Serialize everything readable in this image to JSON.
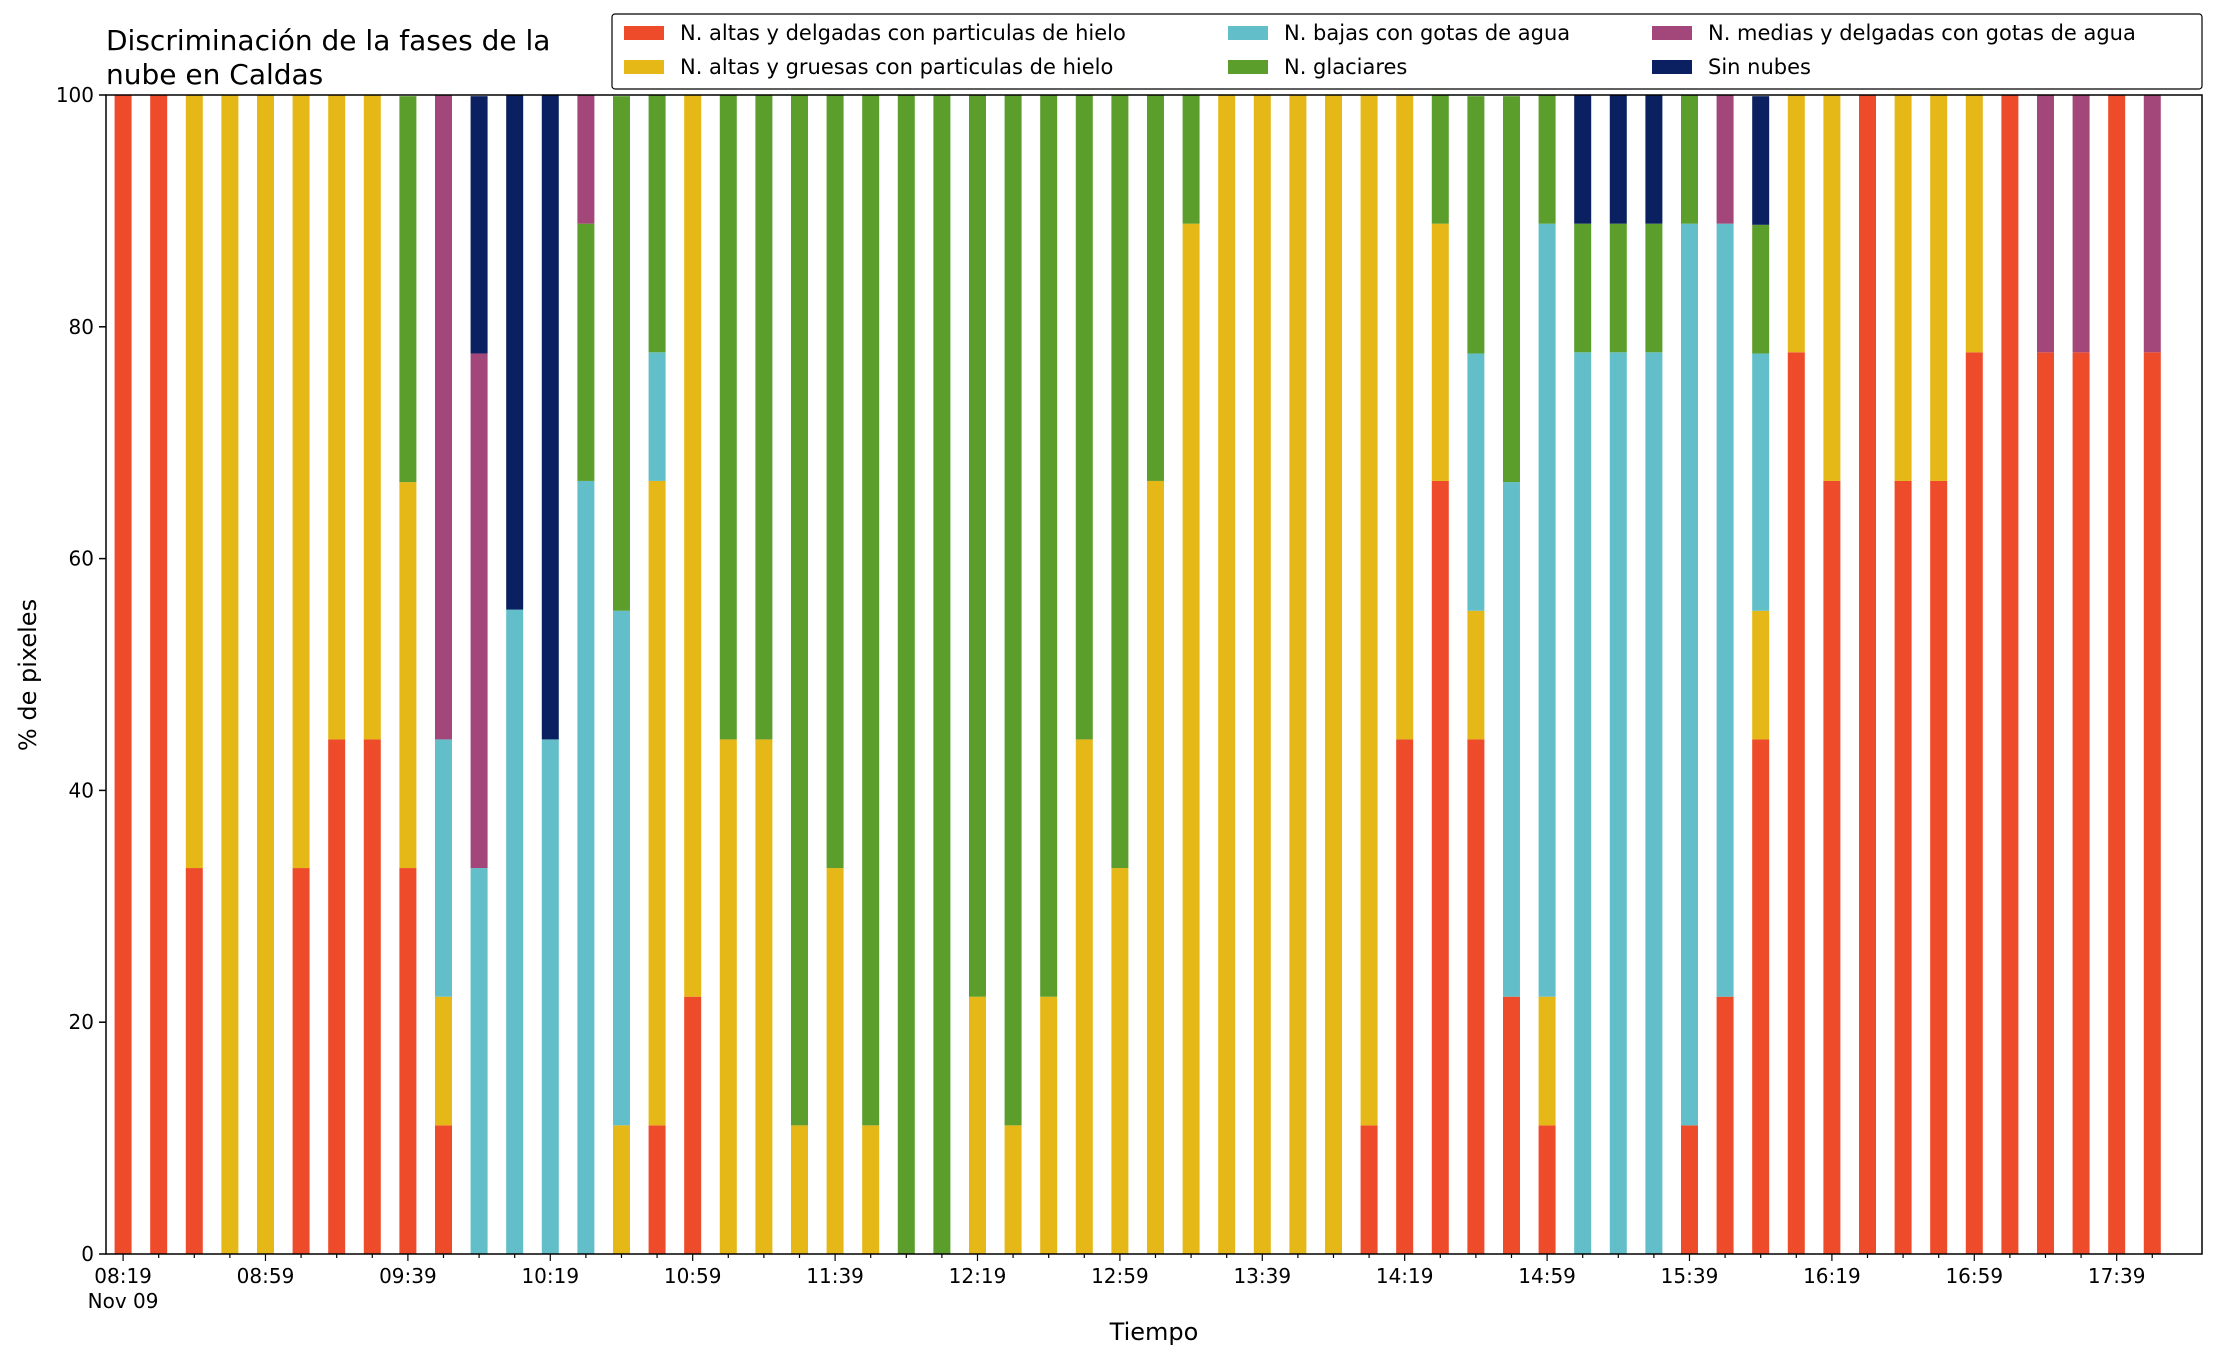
{
  "chart_data": {
    "type": "stacked_bar",
    "title": [
      "Discriminación de la fases de la",
      "nube en Caldas"
    ],
    "x_label": "Tiempo",
    "y_label": "% de pixeles",
    "date_label": "Nov 09",
    "categories": [
      "08:19",
      null,
      null,
      null,
      "08:59",
      null,
      null,
      null,
      "09:39",
      null,
      null,
      null,
      "10:19",
      null,
      null,
      null,
      "10:59",
      null,
      null,
      null,
      "11:39",
      null,
      null,
      null,
      "12:19",
      null,
      null,
      null,
      "12:59",
      null,
      null,
      null,
      "13:39",
      null,
      null,
      null,
      "14:19",
      null,
      null,
      null,
      "14:59",
      null,
      null,
      null,
      "15:39",
      null,
      null,
      null,
      "16:19",
      null,
      null,
      null,
      "16:59",
      null,
      null,
      null,
      "17:39",
      null
    ],
    "ylim": [
      0,
      100
    ],
    "yticks": [
      0,
      20,
      40,
      60,
      80,
      100
    ],
    "legend": "top-right",
    "series": [
      {
        "name": "N. altas y delgadas con particulas de hielo",
        "color": "#ee4b2b",
        "values": [
          100,
          100,
          33.3,
          0,
          0,
          33.3,
          44.4,
          44.4,
          33.3,
          11.1,
          0,
          0,
          0,
          0,
          0,
          11.1,
          22.2,
          0,
          0,
          0,
          0,
          0,
          0,
          0,
          0,
          0,
          0,
          0,
          0,
          0,
          0,
          0,
          0,
          0,
          0,
          11.1,
          44.4,
          66.7,
          44.4,
          22.2,
          11.1,
          0,
          0,
          0,
          11.1,
          22.2,
          44.4,
          77.8,
          66.7,
          100,
          66.7,
          66.7,
          77.8,
          100,
          77.8,
          77.8,
          100,
          77.8
        ]
      },
      {
        "name": "N. altas y gruesas con particulas de hielo",
        "color": "#e6b817",
        "values": [
          0,
          0,
          66.7,
          100,
          100,
          66.7,
          55.6,
          55.6,
          33.3,
          11.1,
          0,
          0,
          0,
          0,
          11.1,
          55.6,
          77.8,
          44.4,
          44.4,
          11.1,
          33.3,
          11.1,
          0,
          0,
          22.2,
          11.1,
          22.2,
          44.4,
          33.3,
          66.7,
          88.9,
          100,
          100,
          100,
          100,
          88.9,
          55.6,
          22.2,
          11.1,
          0,
          11.1,
          0,
          0,
          0,
          0,
          0,
          11.1,
          22.2,
          33.3,
          0,
          33.3,
          33.3,
          22.2,
          0,
          0,
          0,
          0,
          0
        ]
      },
      {
        "name": "N. bajas con gotas de agua",
        "color": "#62bfc9",
        "values": [
          0,
          0,
          0,
          0,
          0,
          0,
          0,
          0,
          0,
          22.2,
          33.3,
          55.6,
          44.4,
          66.7,
          44.4,
          11.1,
          0,
          0,
          0,
          0,
          0,
          0,
          0,
          0,
          0,
          0,
          0,
          0,
          0,
          0,
          0,
          0,
          0,
          0,
          0,
          0,
          0,
          0,
          22.2,
          44.4,
          66.7,
          77.8,
          77.8,
          77.8,
          77.8,
          66.7,
          22.2,
          0,
          0,
          0,
          0,
          0,
          0,
          0,
          0,
          0,
          0,
          0
        ]
      },
      {
        "name": "N. glaciares",
        "color": "#5c9e2c",
        "values": [
          0,
          0,
          0,
          0,
          0,
          0,
          0,
          0,
          33.3,
          0,
          0,
          0,
          0,
          22.2,
          44.4,
          22.2,
          0,
          55.6,
          55.6,
          88.9,
          66.7,
          88.9,
          100,
          100,
          77.8,
          88.9,
          77.8,
          55.6,
          66.7,
          33.3,
          11.1,
          0,
          0,
          0,
          0,
          0,
          0,
          11.1,
          22.2,
          33.3,
          11.1,
          11.1,
          11.1,
          11.1,
          11.1,
          0,
          11.1,
          0,
          0,
          0,
          0,
          0,
          0,
          0,
          0,
          0,
          0,
          0
        ]
      },
      {
        "name": "N. medias y delgadas con gotas de agua",
        "color": "#a3477a",
        "values": [
          0,
          0,
          0,
          0,
          0,
          0,
          0,
          0,
          0,
          55.6,
          44.4,
          0,
          0,
          11.1,
          0,
          0,
          0,
          0,
          0,
          0,
          0,
          0,
          0,
          0,
          0,
          0,
          0,
          0,
          0,
          0,
          0,
          0,
          0,
          0,
          0,
          0,
          0,
          0,
          0,
          0,
          0,
          0,
          0,
          0,
          0,
          11.1,
          0,
          0,
          0,
          0,
          0,
          0,
          0,
          0,
          22.2,
          22.2,
          0,
          22.2
        ]
      },
      {
        "name": "Sin nubes",
        "color": "#0a2060",
        "values": [
          0,
          0,
          0,
          0,
          0,
          0,
          0,
          0,
          0,
          0,
          22.2,
          44.4,
          55.6,
          0,
          0,
          0,
          0,
          0,
          0,
          0,
          0,
          0,
          0,
          0,
          0,
          0,
          0,
          0,
          0,
          0,
          0,
          0,
          0,
          0,
          0,
          0,
          0,
          0,
          0,
          0,
          0,
          11.1,
          11.1,
          11.1,
          0,
          0,
          11.1,
          0,
          0,
          0,
          0,
          0,
          0,
          0,
          0,
          0,
          0,
          0
        ]
      }
    ]
  }
}
